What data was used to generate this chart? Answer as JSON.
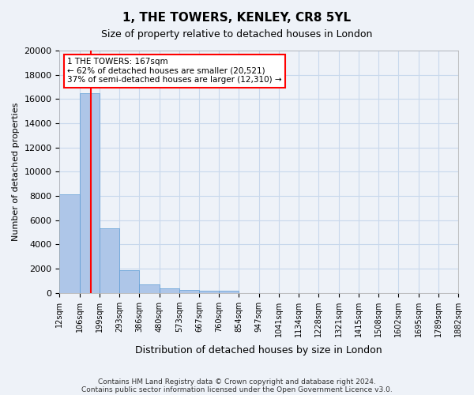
{
  "title": "1, THE TOWERS, KENLEY, CR8 5YL",
  "subtitle": "Size of property relative to detached houses in London",
  "xlabel": "Distribution of detached houses by size in London",
  "ylabel": "Number of detached properties",
  "footer_line1": "Contains HM Land Registry data © Crown copyright and database right 2024.",
  "footer_line2": "Contains public sector information licensed under the Open Government Licence v3.0.",
  "bin_labels": [
    "12sqm",
    "106sqm",
    "199sqm",
    "293sqm",
    "386sqm",
    "480sqm",
    "573sqm",
    "667sqm",
    "760sqm",
    "854sqm",
    "947sqm",
    "1041sqm",
    "1134sqm",
    "1228sqm",
    "1321sqm",
    "1415sqm",
    "1508sqm",
    "1602sqm",
    "1695sqm",
    "1789sqm",
    "1882sqm"
  ],
  "bar_values": [
    8100,
    16500,
    5300,
    1850,
    680,
    340,
    270,
    200,
    150,
    0,
    0,
    0,
    0,
    0,
    0,
    0,
    0,
    0,
    0,
    0
  ],
  "bar_color": "#aec6e8",
  "bar_edge_color": "#5b9bd5",
  "grid_color": "#c8d8ec",
  "property_line_x": 1.55,
  "annotation_text_line1": "1 THE TOWERS: 167sqm",
  "annotation_text_line2": "← 62% of detached houses are smaller (20,521)",
  "annotation_text_line3": "37% of semi-detached houses are larger (12,310) →",
  "ylim": [
    0,
    20000
  ],
  "yticks": [
    0,
    2000,
    4000,
    6000,
    8000,
    10000,
    12000,
    14000,
    16000,
    18000,
    20000
  ],
  "background_color": "#eef2f8",
  "axes_background": "#eef2f8"
}
